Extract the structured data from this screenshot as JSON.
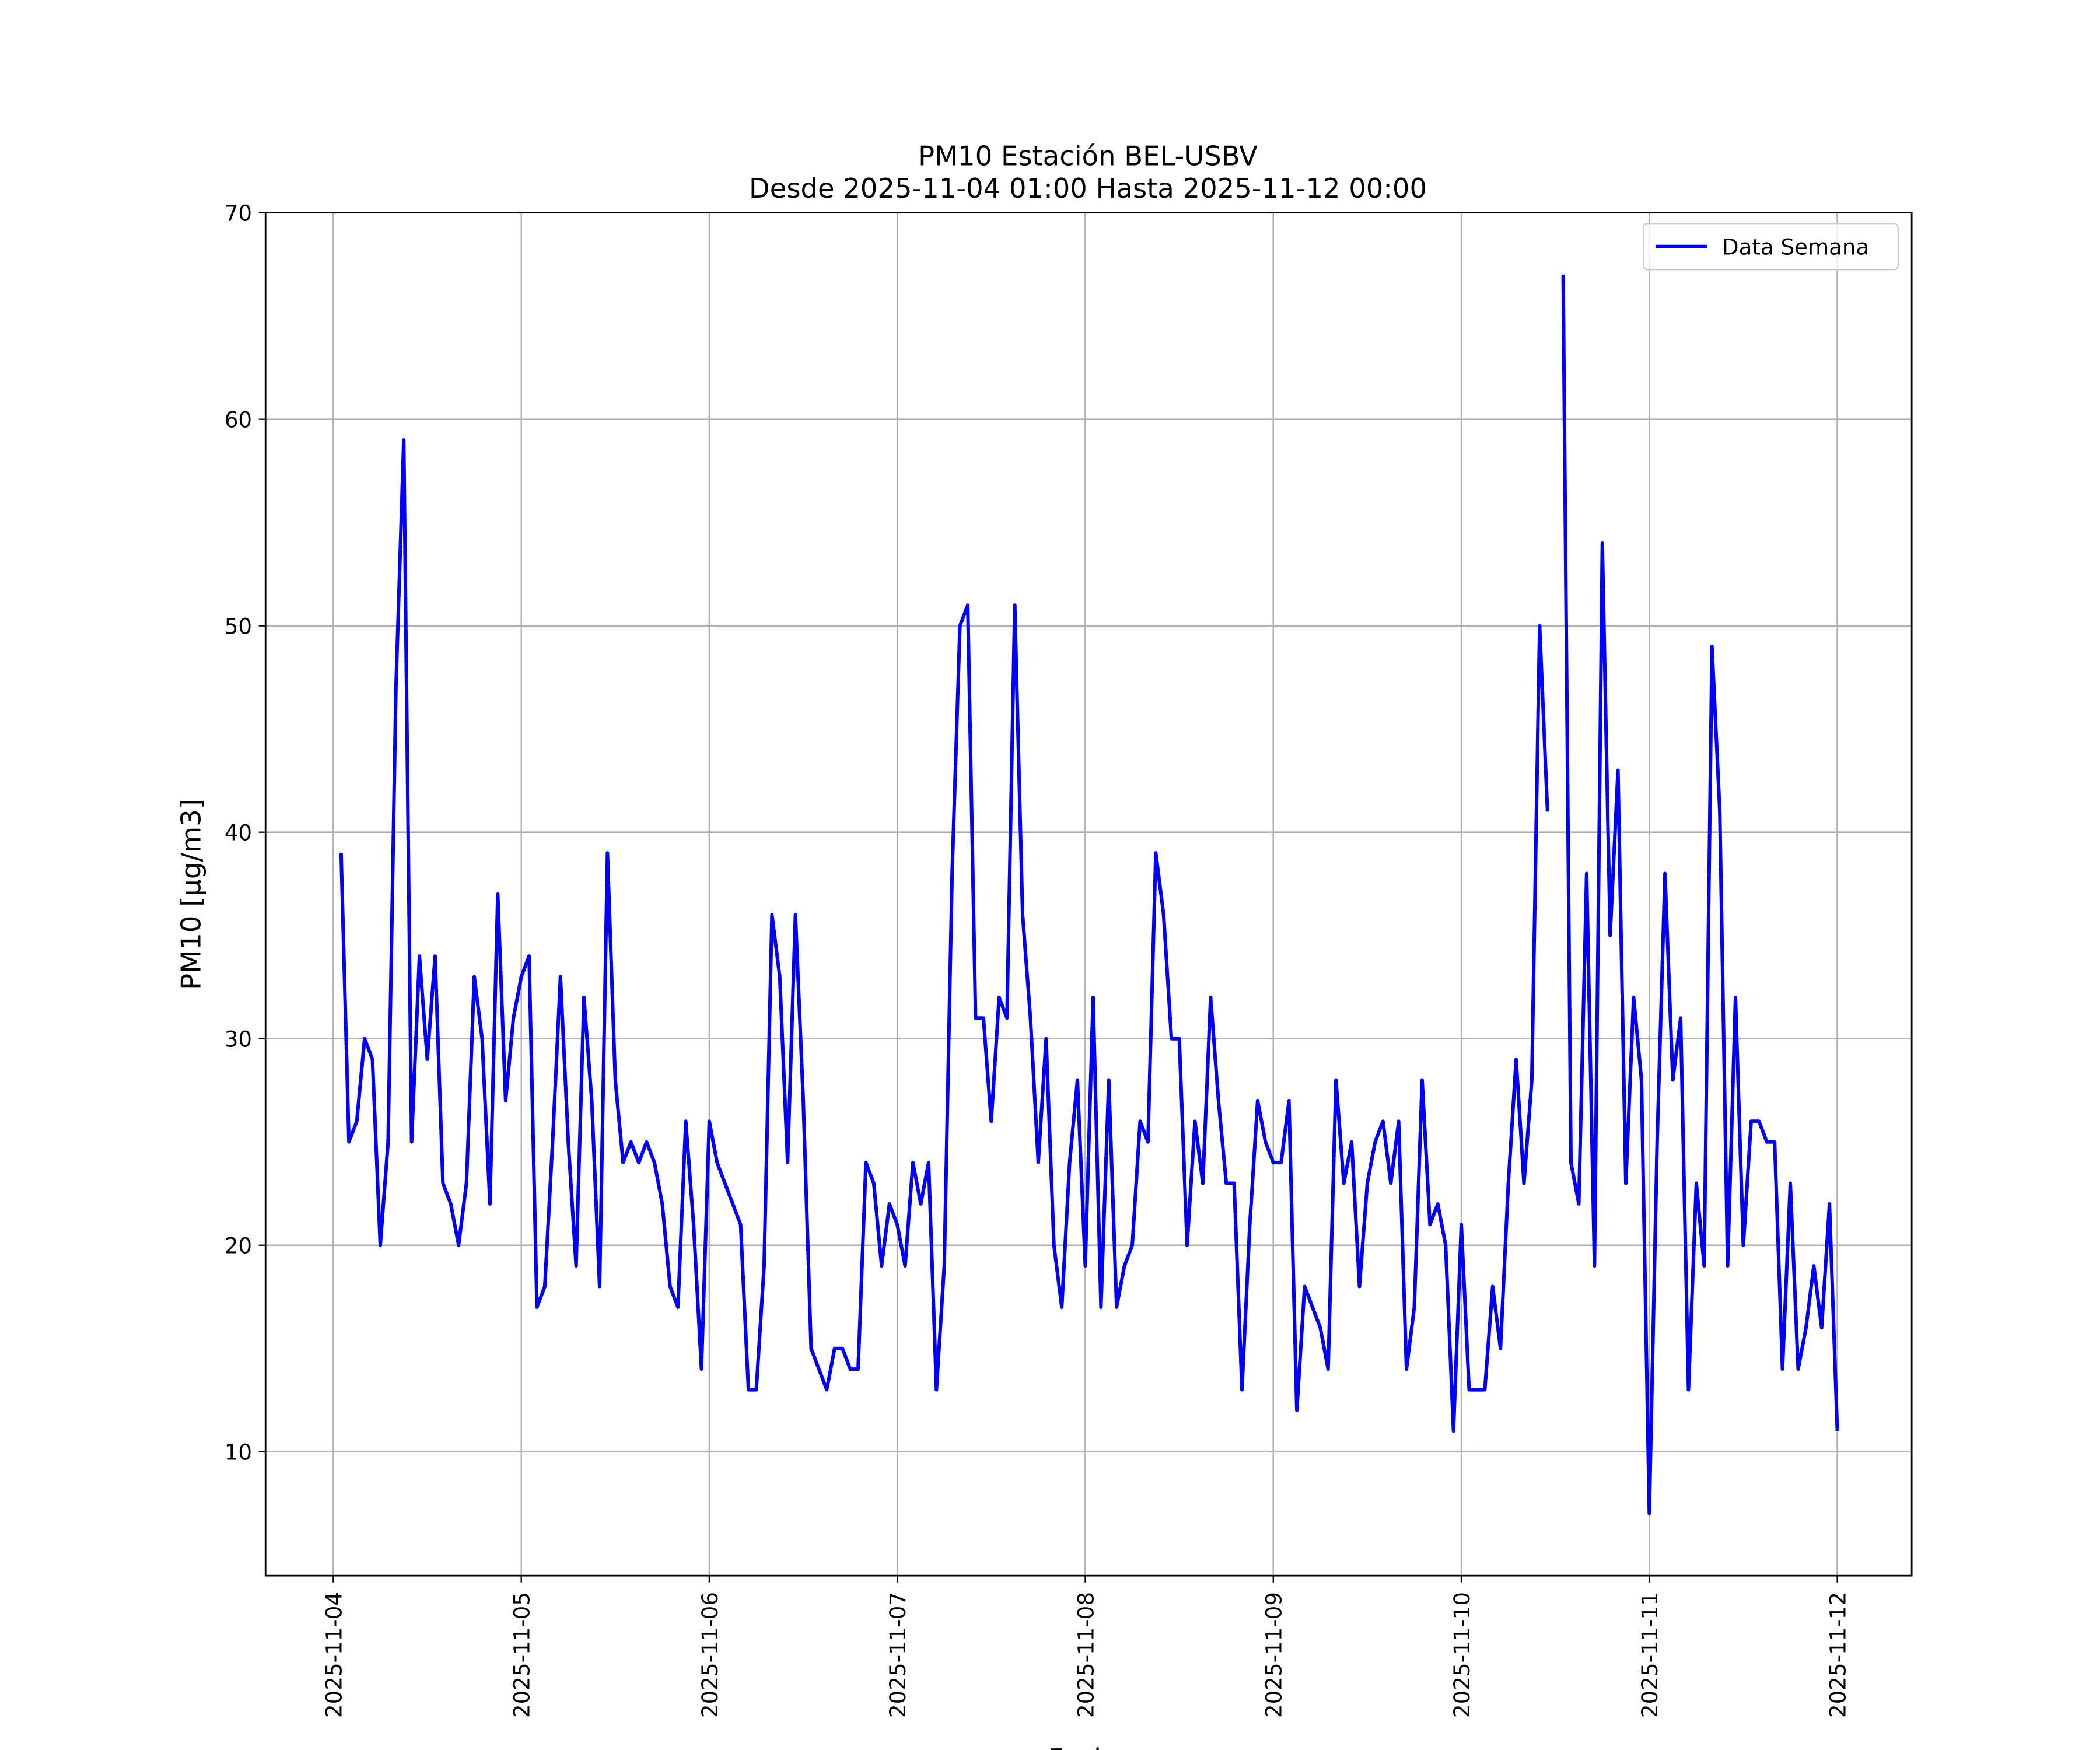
{
  "chart_data": {
    "type": "line",
    "title": "PM10 Estación BEL-USBV",
    "subtitle": "Desde 2025-11-04 01:00 Hasta 2025-11-12 00:00",
    "xlabel": "Fecha",
    "ylabel": "PM10 [μg/m3]",
    "x": [
      "2025-11-04 01:00",
      "2025-11-04 02:00",
      "2025-11-04 03:00",
      "2025-11-04 04:00",
      "2025-11-04 05:00",
      "2025-11-04 06:00",
      "2025-11-04 07:00",
      "2025-11-04 08:00",
      "2025-11-04 09:00",
      "2025-11-04 10:00",
      "2025-11-04 11:00",
      "2025-11-04 12:00",
      "2025-11-04 13:00",
      "2025-11-04 14:00",
      "2025-11-04 15:00",
      "2025-11-04 16:00",
      "2025-11-04 17:00",
      "2025-11-04 18:00",
      "2025-11-04 19:00",
      "2025-11-04 20:00",
      "2025-11-04 21:00",
      "2025-11-04 22:00",
      "2025-11-04 23:00",
      "2025-11-05 00:00",
      "2025-11-05 01:00",
      "2025-11-05 02:00",
      "2025-11-05 03:00",
      "2025-11-05 04:00",
      "2025-11-05 05:00",
      "2025-11-05 06:00",
      "2025-11-05 07:00",
      "2025-11-05 08:00",
      "2025-11-05 09:00",
      "2025-11-05 10:00",
      "2025-11-05 11:00",
      "2025-11-05 12:00",
      "2025-11-05 13:00",
      "2025-11-05 14:00",
      "2025-11-05 15:00",
      "2025-11-05 16:00",
      "2025-11-05 17:00",
      "2025-11-05 18:00",
      "2025-11-05 19:00",
      "2025-11-05 20:00",
      "2025-11-05 21:00",
      "2025-11-05 22:00",
      "2025-11-05 23:00",
      "2025-11-06 00:00",
      "2025-11-06 01:00",
      "2025-11-06 02:00",
      "2025-11-06 03:00",
      "2025-11-06 04:00",
      "2025-11-06 05:00",
      "2025-11-06 06:00",
      "2025-11-06 07:00",
      "2025-11-06 08:00",
      "2025-11-06 09:00",
      "2025-11-06 10:00",
      "2025-11-06 11:00",
      "2025-11-06 12:00",
      "2025-11-06 13:00",
      "2025-11-06 14:00",
      "2025-11-06 15:00",
      "2025-11-06 16:00",
      "2025-11-06 17:00",
      "2025-11-06 18:00",
      "2025-11-06 19:00",
      "2025-11-06 20:00",
      "2025-11-06 21:00",
      "2025-11-06 22:00",
      "2025-11-06 23:00",
      "2025-11-07 00:00",
      "2025-11-07 01:00",
      "2025-11-07 02:00",
      "2025-11-07 03:00",
      "2025-11-07 04:00",
      "2025-11-07 05:00",
      "2025-11-07 06:00",
      "2025-11-07 07:00",
      "2025-11-07 08:00",
      "2025-11-07 09:00",
      "2025-11-07 10:00",
      "2025-11-07 11:00",
      "2025-11-07 12:00",
      "2025-11-07 13:00",
      "2025-11-07 14:00",
      "2025-11-07 15:00",
      "2025-11-07 16:00",
      "2025-11-07 17:00",
      "2025-11-07 18:00",
      "2025-11-07 19:00",
      "2025-11-07 20:00",
      "2025-11-07 21:00",
      "2025-11-07 22:00",
      "2025-11-07 23:00",
      "2025-11-08 00:00",
      "2025-11-08 01:00",
      "2025-11-08 02:00",
      "2025-11-08 03:00",
      "2025-11-08 04:00",
      "2025-11-08 05:00",
      "2025-11-08 06:00",
      "2025-11-08 07:00",
      "2025-11-08 08:00",
      "2025-11-08 09:00",
      "2025-11-08 10:00",
      "2025-11-08 11:00",
      "2025-11-08 12:00",
      "2025-11-08 13:00",
      "2025-11-08 14:00",
      "2025-11-08 15:00",
      "2025-11-08 16:00",
      "2025-11-08 17:00",
      "2025-11-08 18:00",
      "2025-11-08 19:00",
      "2025-11-08 20:00",
      "2025-11-08 21:00",
      "2025-11-08 22:00",
      "2025-11-08 23:00",
      "2025-11-09 00:00",
      "2025-11-09 01:00",
      "2025-11-09 02:00",
      "2025-11-09 03:00",
      "2025-11-09 04:00",
      "2025-11-09 05:00",
      "2025-11-09 06:00",
      "2025-11-09 07:00",
      "2025-11-09 08:00",
      "2025-11-09 09:00",
      "2025-11-09 10:00",
      "2025-11-09 11:00",
      "2025-11-09 12:00",
      "2025-11-09 13:00",
      "2025-11-09 14:00",
      "2025-11-09 15:00",
      "2025-11-09 16:00",
      "2025-11-09 17:00",
      "2025-11-09 18:00",
      "2025-11-09 19:00",
      "2025-11-09 20:00",
      "2025-11-09 21:00",
      "2025-11-09 22:00",
      "2025-11-09 23:00",
      "2025-11-10 00:00",
      "2025-11-10 01:00",
      "2025-11-10 02:00",
      "2025-11-10 03:00",
      "2025-11-10 04:00",
      "2025-11-10 05:00",
      "2025-11-10 06:00",
      "2025-11-10 07:00",
      "2025-11-10 08:00",
      "2025-11-10 09:00",
      "2025-11-10 10:00",
      "2025-11-10 11:00",
      "2025-11-10 12:00",
      "2025-11-10 13:00",
      "2025-11-10 14:00",
      "2025-11-10 15:00",
      "2025-11-10 16:00",
      "2025-11-10 17:00",
      "2025-11-10 18:00",
      "2025-11-10 19:00",
      "2025-11-10 20:00",
      "2025-11-10 21:00",
      "2025-11-10 22:00",
      "2025-11-10 23:00",
      "2025-11-11 00:00",
      "2025-11-11 01:00",
      "2025-11-11 02:00",
      "2025-11-11 03:00",
      "2025-11-11 04:00",
      "2025-11-11 05:00",
      "2025-11-11 06:00",
      "2025-11-11 07:00",
      "2025-11-11 08:00",
      "2025-11-11 09:00",
      "2025-11-11 10:00",
      "2025-11-11 11:00",
      "2025-11-11 12:00",
      "2025-11-11 13:00",
      "2025-11-11 14:00",
      "2025-11-11 15:00",
      "2025-11-11 16:00",
      "2025-11-11 17:00",
      "2025-11-11 18:00",
      "2025-11-11 19:00",
      "2025-11-11 20:00",
      "2025-11-11 21:00",
      "2025-11-11 22:00",
      "2025-11-11 23:00",
      "2025-11-12 00:00"
    ],
    "series": [
      {
        "name": "Data Semana",
        "color": "#0000ff",
        "values": [
          39,
          25,
          26,
          30,
          29,
          20,
          25,
          47,
          59,
          25,
          34,
          29,
          34,
          23,
          22,
          20,
          23,
          33,
          30,
          22,
          37,
          27,
          31,
          33,
          34,
          17,
          18,
          25,
          33,
          25,
          19,
          32,
          27,
          18,
          39,
          28,
          24,
          25,
          24,
          25,
          24,
          22,
          18,
          17,
          26,
          21,
          14,
          26,
          24,
          23,
          22,
          21,
          13,
          13,
          19,
          36,
          33,
          24,
          36,
          27,
          15,
          14,
          13,
          15,
          15,
          14,
          14,
          24,
          23,
          19,
          22,
          21,
          19,
          24,
          22,
          24,
          13,
          19,
          38,
          50,
          51,
          31,
          31,
          26,
          32,
          31,
          51,
          36,
          31,
          24,
          30,
          20,
          17,
          24,
          28,
          19,
          32,
          17,
          28,
          17,
          19,
          20,
          26,
          25,
          39,
          36,
          30,
          30,
          20,
          26,
          23,
          32,
          27,
          23,
          23,
          13,
          21,
          27,
          25,
          24,
          24,
          27,
          12,
          18,
          17,
          16,
          14,
          28,
          23,
          25,
          18,
          23,
          25,
          26,
          23,
          26,
          14,
          17,
          28,
          21,
          22,
          20,
          11,
          21,
          13,
          13,
          13,
          18,
          15,
          23,
          29,
          23,
          28,
          50,
          41,
          null,
          67,
          24,
          22,
          38,
          19,
          54,
          35,
          43,
          23,
          32,
          28,
          7,
          25,
          38,
          28,
          31,
          13,
          23,
          19,
          49,
          41,
          19,
          32,
          20,
          26,
          26,
          25,
          25,
          14,
          23,
          14,
          16,
          19,
          16,
          22,
          11
        ]
      }
    ],
    "xlim": [
      "2025-11-03 15:21",
      "2025-11-12 09:30"
    ],
    "xticks": [
      "2025-11-04",
      "2025-11-05",
      "2025-11-06",
      "2025-11-07",
      "2025-11-08",
      "2025-11-09",
      "2025-11-10",
      "2025-11-11",
      "2025-11-12"
    ],
    "ylim": [
      4,
      70
    ],
    "yticks": [
      10,
      20,
      30,
      40,
      50,
      60,
      70
    ],
    "grid": true,
    "legend": "upper right"
  }
}
